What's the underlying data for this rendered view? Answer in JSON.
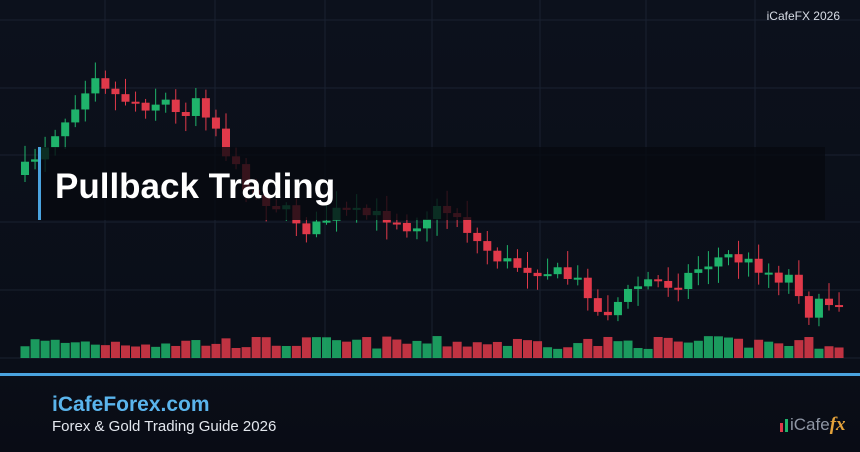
{
  "header": {
    "badge": "iCafeFX 2026"
  },
  "title": "Pullback Trading",
  "footer": {
    "site": "iCafeForex.com",
    "subtitle": "Forex & Gold Trading Guide 2026",
    "logo": {
      "text": "iCafe",
      "accent": "fx"
    }
  }
}
